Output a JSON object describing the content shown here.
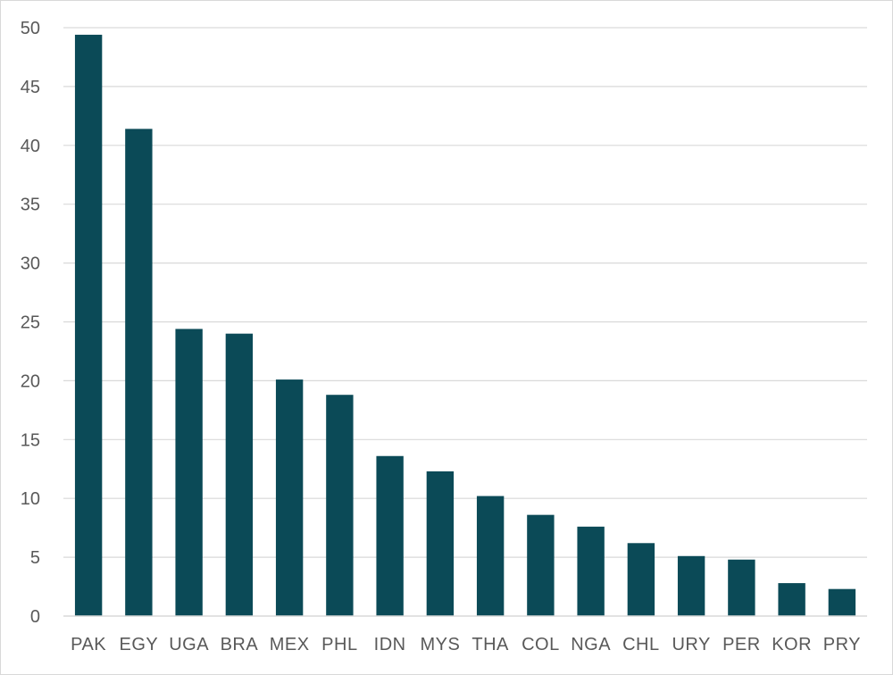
{
  "chart_data": {
    "type": "bar",
    "title": "",
    "xlabel": "",
    "ylabel": "",
    "categories": [
      "PAK",
      "EGY",
      "UGA",
      "BRA",
      "MEX",
      "PHL",
      "IDN",
      "MYS",
      "THA",
      "COL",
      "NGA",
      "CHL",
      "URY",
      "PER",
      "KOR",
      "PRY"
    ],
    "values": [
      49.4,
      41.4,
      24.4,
      24.0,
      20.1,
      18.8,
      13.6,
      12.3,
      10.2,
      8.6,
      7.6,
      6.2,
      5.1,
      4.8,
      2.8,
      2.3
    ],
    "ylim": [
      0,
      50
    ],
    "yticks": [
      0,
      5,
      10,
      15,
      20,
      25,
      30,
      35,
      40,
      45,
      50
    ],
    "grid": true,
    "legend": "none",
    "bar_color": "#0b4a57"
  }
}
